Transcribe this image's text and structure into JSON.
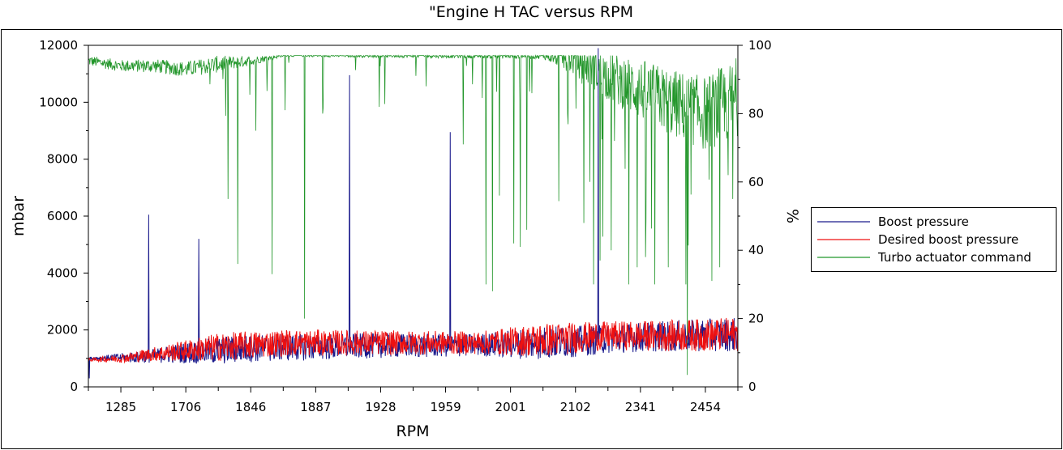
{
  "chart_data": {
    "type": "line",
    "title": "\"Engine H TAC versus RPM",
    "xlabel": "RPM",
    "ylabel": "mbar",
    "y2label": "%",
    "x_ticks": [
      "1285",
      "1706",
      "1846",
      "1887",
      "1928",
      "1959",
      "2001",
      "2102",
      "2341",
      "2454"
    ],
    "y_ticks": [
      0,
      2000,
      4000,
      6000,
      8000,
      10000,
      12000
    ],
    "y2_ticks": [
      0,
      20,
      40,
      60,
      80,
      100
    ],
    "ylim": [
      0,
      12000
    ],
    "y2lim": [
      0,
      100
    ],
    "grid": false,
    "legend_position": "right",
    "colors": {
      "boost": "#1a1a8c",
      "desired": "#ee1111",
      "turbo": "#22962a"
    },
    "series": [
      {
        "name": "Boost pressure",
        "axis": "left",
        "units": "mbar",
        "baseline_points": [
          [
            0,
            1000
          ],
          [
            0.08,
            1050
          ],
          [
            0.15,
            1200
          ],
          [
            0.25,
            1350
          ],
          [
            0.35,
            1400
          ],
          [
            0.45,
            1450
          ],
          [
            0.55,
            1450
          ],
          [
            0.65,
            1500
          ],
          [
            0.75,
            1600
          ],
          [
            0.85,
            1750
          ],
          [
            1.0,
            1850
          ]
        ],
        "spikes": [
          {
            "x": 0.093,
            "value": 6050
          },
          {
            "x": 0.17,
            "value": 5200
          },
          {
            "x": 0.402,
            "value": 10950
          },
          {
            "x": 0.557,
            "value": 8950
          },
          {
            "x": 0.785,
            "value": 11900
          }
        ]
      },
      {
        "name": "Desired boost pressure",
        "axis": "left",
        "units": "mbar",
        "points": [
          [
            0,
            950
          ],
          [
            0.05,
            1000
          ],
          [
            0.1,
            1150
          ],
          [
            0.2,
            1400
          ],
          [
            0.3,
            1550
          ],
          [
            0.4,
            1550
          ],
          [
            0.5,
            1550
          ],
          [
            0.6,
            1550
          ],
          [
            0.7,
            1650
          ],
          [
            0.8,
            1800
          ],
          [
            0.9,
            1800
          ],
          [
            1.0,
            1850
          ]
        ],
        "noise_amplitude": [
          [
            0,
            50
          ],
          [
            0.1,
            250
          ],
          [
            0.2,
            500
          ],
          [
            0.4,
            450
          ],
          [
            0.6,
            400
          ],
          [
            0.7,
            600
          ],
          [
            0.8,
            500
          ],
          [
            1.0,
            600
          ]
        ]
      },
      {
        "name": "Turbo actuator command",
        "axis": "right",
        "units": "%",
        "baseline_points": [
          [
            0,
            95.5
          ],
          [
            0.05,
            94
          ],
          [
            0.1,
            94
          ],
          [
            0.15,
            93
          ],
          [
            0.2,
            94.5
          ],
          [
            0.25,
            95.5
          ],
          [
            0.3,
            97
          ],
          [
            0.7,
            97
          ],
          [
            0.75,
            96
          ],
          [
            0.8,
            91
          ],
          [
            0.85,
            87
          ],
          [
            0.9,
            83
          ],
          [
            0.95,
            80
          ],
          [
            1.0,
            85
          ]
        ],
        "dips": [
          [
            0.215,
            55
          ],
          [
            0.23,
            36
          ],
          [
            0.258,
            75
          ],
          [
            0.283,
            33
          ],
          [
            0.303,
            81
          ],
          [
            0.333,
            20
          ],
          [
            0.448,
            82
          ],
          [
            0.52,
            88
          ],
          [
            0.577,
            71
          ],
          [
            0.582,
            94
          ],
          [
            0.612,
            30
          ],
          [
            0.622,
            28
          ],
          [
            0.633,
            56
          ],
          [
            0.655,
            42
          ],
          [
            0.665,
            41
          ],
          [
            0.675,
            46
          ],
          [
            0.683,
            86
          ],
          [
            0.738,
            80
          ],
          [
            0.763,
            48
          ],
          [
            0.772,
            60
          ],
          [
            0.778,
            30
          ],
          [
            0.788,
            37
          ],
          [
            0.792,
            44
          ],
          [
            0.805,
            40
          ],
          [
            0.81,
            72
          ],
          [
            0.832,
            30
          ],
          [
            0.845,
            35
          ],
          [
            0.858,
            38
          ],
          [
            0.872,
            30
          ],
          [
            0.893,
            35
          ],
          [
            0.92,
            30
          ],
          [
            0.96,
            31
          ],
          [
            0.972,
            35
          ],
          [
            0.985,
            62
          ],
          [
            0.992,
            55
          ]
        ],
        "deep_dip": [
          0.922,
          3.5
        ],
        "noise_amplitude": [
          [
            0,
            1.5
          ],
          [
            0.2,
            2.5
          ],
          [
            0.3,
            0.3
          ],
          [
            0.7,
            1
          ],
          [
            0.75,
            5
          ],
          [
            0.85,
            9
          ],
          [
            1.0,
            12
          ]
        ]
      }
    ]
  }
}
